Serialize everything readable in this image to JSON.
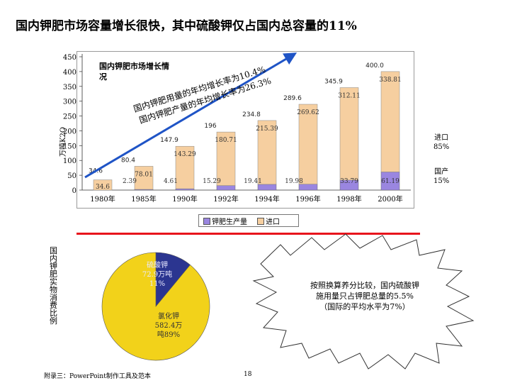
{
  "title": "国内钾肥市场容量增长很快，其中硫酸钾仅占国内总容量的11%",
  "chart_data": {
    "type": "bar",
    "title": "国内钾肥市场增长情况",
    "ylabel": "万吨K2O",
    "ylim": [
      0,
      450
    ],
    "yticks": [
      0,
      50,
      100,
      150,
      200,
      250,
      300,
      350,
      400,
      450
    ],
    "categories": [
      "1980年",
      "1985年",
      "1990年",
      "1992年",
      "1994年",
      "1996年",
      "1998年",
      "2000年"
    ],
    "series": [
      {
        "name": "钾肥生产量",
        "values": [
          0,
          2.39,
          4.61,
          15.29,
          19.41,
          19.98,
          33.79,
          61.19
        ],
        "labels": [
          "",
          "2.39",
          "4.61",
          "15.29",
          "19.41",
          "19.98",
          "33.79",
          "61.19"
        ]
      },
      {
        "name": "进口",
        "values": [
          34.6,
          78.01,
          143.29,
          180.71,
          215.39,
          269.62,
          312.11,
          338.81
        ],
        "labels": [
          "34.6",
          "78.01",
          "143.29",
          "180.71",
          "215.39",
          "269.62",
          "312.11",
          "338.81"
        ]
      }
    ],
    "totals": [
      34.6,
      80.4,
      147.9,
      196,
      234.8,
      289.6,
      345.9,
      400.0
    ],
    "total_labels": [
      "34.6",
      "80.4",
      "147.9",
      "196",
      "234.8",
      "289.6",
      "345.9",
      "400.0"
    ],
    "annotation_use": "国内钾肥用量的年均增长率为10.4%",
    "annotation_prod": "国内钾肥产量的年均增长率为26.3%",
    "share_import": "进口\n85%",
    "share_domestic": "国产\n15%",
    "legend": [
      "钾肥生产量",
      "进口"
    ]
  },
  "pie": {
    "caption": "国内钾肥实物消费比例",
    "slices": [
      {
        "name": "硫酸钾",
        "label": "硫酸钾\n72.9万吨\n11%",
        "value": 11,
        "color": "#2b3590"
      },
      {
        "name": "氯化钾",
        "label": "氯化钾\n582.4万\n吨89%",
        "value": 89,
        "color": "#f2d21a"
      }
    ]
  },
  "callout": {
    "text": "按照换算养分比较，国内硫酸钾\n施用量只占钾肥总量的5.5%\n（国际的平均水平为7%）"
  },
  "footer": {
    "left": "附录三：PowerPoint制作工具及范本",
    "page": "18"
  },
  "colors": {
    "import_bar": "#f6cfa0",
    "domestic_bar": "#9a86e0",
    "accent_red": "#e8141c",
    "arrow_blue": "#1f54c6"
  }
}
